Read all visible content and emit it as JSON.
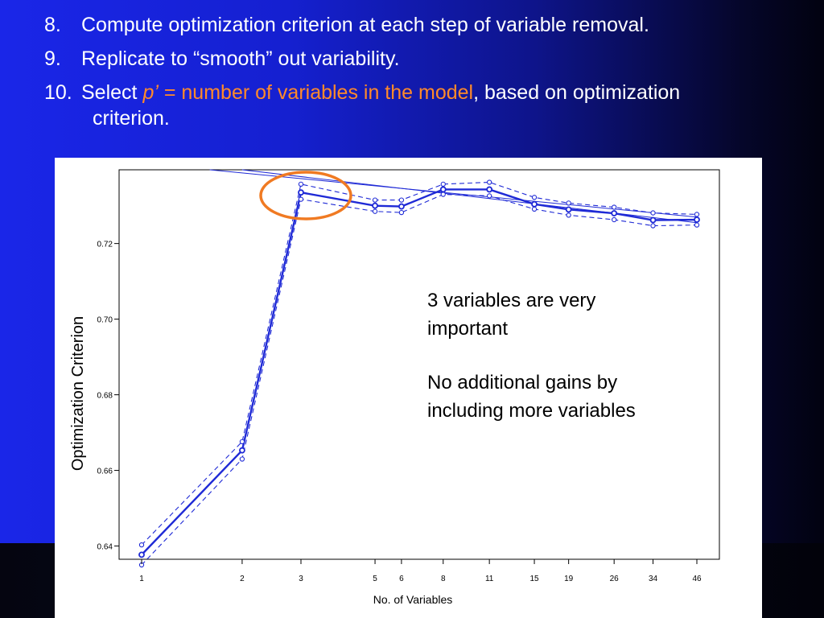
{
  "slide": {
    "bullets": [
      {
        "num": "8.",
        "text": "Compute optimization criterion at each step of variable removal."
      },
      {
        "num": "9.",
        "text": "Replicate to “smooth” out variability."
      },
      {
        "num": "10.",
        "pre": "Select ",
        "p_symbol": "p’",
        "eq": " = ",
        "highlight": "number of variables in the model",
        "post": ", based on optimization",
        "cont": "criterion."
      }
    ],
    "colors": {
      "text": "#ffffff",
      "highlight": "#ff8a2a",
      "series": "#1f2ad6",
      "circle": "#f07a22"
    }
  },
  "chart_data": {
    "type": "line",
    "title": "",
    "xlabel": "No. of Variables",
    "ylabel": "Optimization Criterion",
    "x": [
      1,
      2,
      3,
      5,
      6,
      8,
      11,
      15,
      19,
      26,
      34,
      46
    ],
    "x_ticks": [
      "1",
      "2",
      "3",
      "5",
      "6",
      "8",
      "11",
      "15",
      "19",
      "26",
      "34",
      "46"
    ],
    "y_ticks": [
      "0.64",
      "0.66",
      "0.68",
      "0.70",
      "0.72"
    ],
    "ylim": [
      0.6365,
      0.7395
    ],
    "x_scale": "log",
    "series": [
      {
        "style": "solid-bold",
        "values": [
          0.6377,
          0.6653,
          0.7335,
          0.73,
          0.7298,
          0.7343,
          0.7343,
          0.7304,
          0.729,
          0.728,
          0.7262,
          0.7263
        ]
      },
      {
        "style": "dashed",
        "values": [
          0.6403,
          0.6676,
          0.7357,
          0.7315,
          0.7315,
          0.7357,
          0.7362,
          0.7322,
          0.7307,
          0.7296,
          0.7281,
          0.7277
        ]
      },
      {
        "style": "dashed",
        "values": [
          0.635,
          0.663,
          0.7317,
          0.7285,
          0.7282,
          0.733,
          0.7326,
          0.7291,
          0.7275,
          0.7263,
          0.7247,
          0.7249
        ]
      }
    ],
    "reference_lines": [
      {
        "from": [
          1.6,
          0.7395
        ],
        "to": [
          46,
          0.727
        ]
      },
      {
        "from": [
          2.0,
          0.7395
        ],
        "to": [
          46,
          0.7255
        ]
      }
    ],
    "highlight_circle_at_x": 3,
    "annotations": [
      "3 variables are very",
      "important",
      "No additional gains by",
      "including more variables"
    ],
    "grid": false,
    "legend": "none"
  }
}
